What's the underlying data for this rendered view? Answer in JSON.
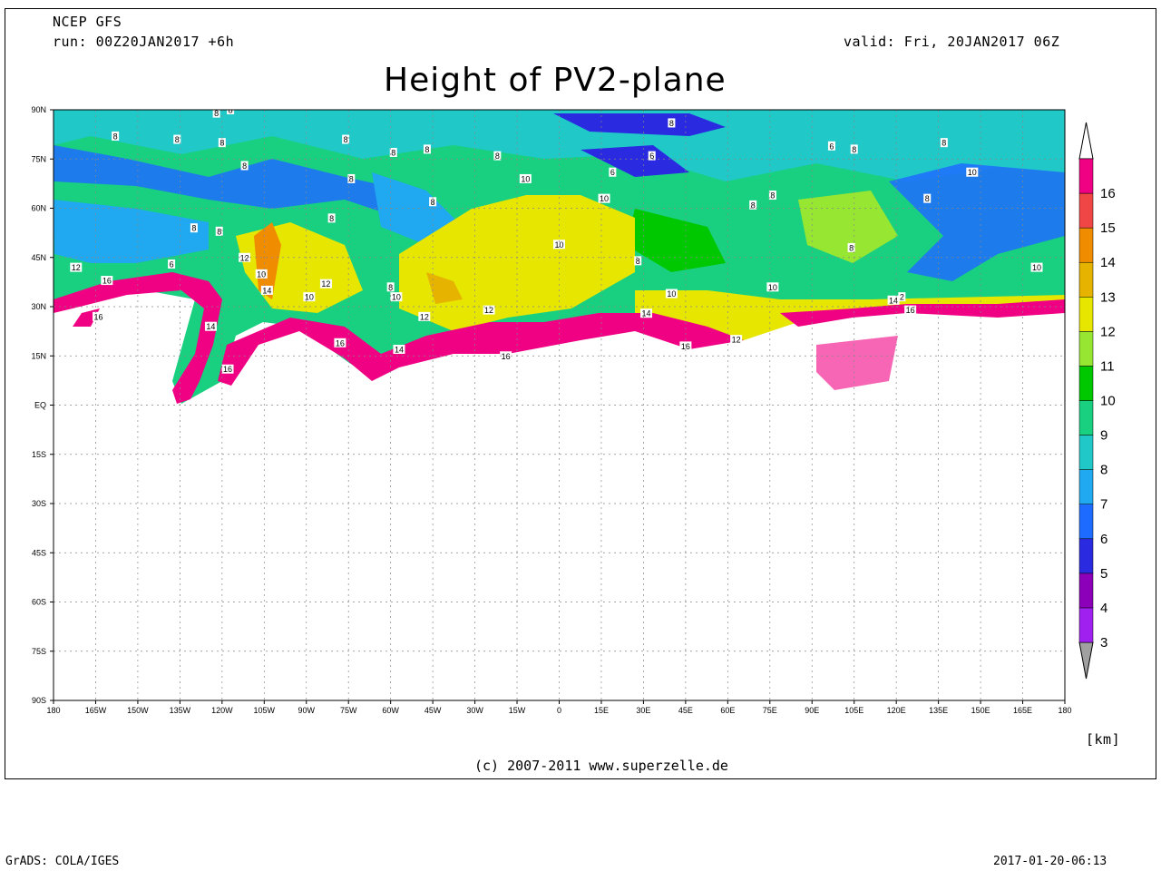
{
  "header": {
    "model": "NCEP GFS",
    "run": "run: 00Z20JAN2017 +6h",
    "valid": "valid: Fri, 20JAN2017 06Z",
    "title": "Height of PV2-plane"
  },
  "map": {
    "lat_labels": [
      "90N",
      "75N",
      "60N",
      "45N",
      "30N",
      "15N",
      "EQ",
      "15S",
      "30S",
      "45S",
      "60S",
      "75S",
      "90S"
    ],
    "lon_labels": [
      "180",
      "165W",
      "150W",
      "135W",
      "120W",
      "105W",
      "90W",
      "75W",
      "60W",
      "45W",
      "30W",
      "15W",
      "0",
      "15E",
      "30E",
      "45E",
      "60E",
      "75E",
      "90E",
      "105E",
      "120E",
      "135E",
      "150E",
      "165E",
      "180"
    ],
    "contour_labels": [
      {
        "text": "8",
        "lon": -122,
        "lat": 89
      },
      {
        "text": "8",
        "lon": -117,
        "lat": 90
      },
      {
        "text": "8",
        "lon": -158,
        "lat": 82
      },
      {
        "text": "8",
        "lon": -136,
        "lat": 81
      },
      {
        "text": "8",
        "lon": -120,
        "lat": 80
      },
      {
        "text": "8",
        "lon": -59,
        "lat": 77
      },
      {
        "text": "8",
        "lon": -76,
        "lat": 81
      },
      {
        "text": "8",
        "lon": -112,
        "lat": 73
      },
      {
        "text": "8",
        "lon": -74,
        "lat": 69
      },
      {
        "text": "8",
        "lon": -47,
        "lat": 78
      },
      {
        "text": "8",
        "lon": -22,
        "lat": 76
      },
      {
        "text": "6",
        "lon": 19,
        "lat": 71
      },
      {
        "text": "6",
        "lon": 33,
        "lat": 76
      },
      {
        "text": "8",
        "lon": 40,
        "lat": 86
      },
      {
        "text": "6",
        "lon": 97,
        "lat": 79
      },
      {
        "text": "8",
        "lon": 105,
        "lat": 78
      },
      {
        "text": "8",
        "lon": 137,
        "lat": 80
      },
      {
        "text": "10",
        "lon": 147,
        "lat": 71
      },
      {
        "text": "10",
        "lon": -12,
        "lat": 69
      },
      {
        "text": "10",
        "lon": 16,
        "lat": 63
      },
      {
        "text": "8",
        "lon": 69,
        "lat": 61
      },
      {
        "text": "8",
        "lon": 76,
        "lat": 64
      },
      {
        "text": "8",
        "lon": 131,
        "lat": 63
      },
      {
        "text": "8",
        "lon": -45,
        "lat": 62
      },
      {
        "text": "8",
        "lon": -81,
        "lat": 57
      },
      {
        "text": "8",
        "lon": -130,
        "lat": 54
      },
      {
        "text": "8",
        "lon": -121,
        "lat": 53
      },
      {
        "text": "6",
        "lon": -138,
        "lat": 43
      },
      {
        "text": "12",
        "lon": -172,
        "lat": 42
      },
      {
        "text": "16",
        "lon": -161,
        "lat": 38
      },
      {
        "text": "12",
        "lon": -112,
        "lat": 45
      },
      {
        "text": "10",
        "lon": -106,
        "lat": 40
      },
      {
        "text": "14",
        "lon": -104,
        "lat": 35
      },
      {
        "text": "10",
        "lon": -89,
        "lat": 33
      },
      {
        "text": "12",
        "lon": -83,
        "lat": 37
      },
      {
        "text": "8",
        "lon": -60,
        "lat": 36
      },
      {
        "text": "10",
        "lon": -58,
        "lat": 33
      },
      {
        "text": "12",
        "lon": -48,
        "lat": 27
      },
      {
        "text": "12",
        "lon": -25,
        "lat": 29
      },
      {
        "text": "10",
        "lon": 0,
        "lat": 49
      },
      {
        "text": "8",
        "lon": 28,
        "lat": 44
      },
      {
        "text": "10",
        "lon": 40,
        "lat": 34
      },
      {
        "text": "14",
        "lon": 31,
        "lat": 28
      },
      {
        "text": "16",
        "lon": 45,
        "lat": 18
      },
      {
        "text": "12",
        "lon": 63,
        "lat": 20
      },
      {
        "text": "10",
        "lon": 76,
        "lat": 36
      },
      {
        "text": "8",
        "lon": 104,
        "lat": 48
      },
      {
        "text": "14",
        "lon": 119,
        "lat": 32
      },
      {
        "text": "2",
        "lon": 122,
        "lat": 33
      },
      {
        "text": "16",
        "lon": 125,
        "lat": 29
      },
      {
        "text": "10",
        "lon": 170,
        "lat": 42
      },
      {
        "text": "16",
        "lon": -164,
        "lat": 27
      },
      {
        "text": "14",
        "lon": -124,
        "lat": 24
      },
      {
        "text": "16",
        "lon": -118,
        "lat": 11
      },
      {
        "text": "16",
        "lon": -78,
        "lat": 19
      },
      {
        "text": "14",
        "lon": -57,
        "lat": 17
      },
      {
        "text": "16",
        "lon": -19,
        "lat": 15
      }
    ]
  },
  "colorbar": {
    "levels": [
      "3",
      "4",
      "5",
      "6",
      "7",
      "8",
      "9",
      "10",
      "11",
      "12",
      "13",
      "14",
      "15",
      "16"
    ],
    "colors": [
      "#a020f0",
      "#8b00b8",
      "#2a2ae0",
      "#1e6cff",
      "#20a8f0",
      "#20c8c8",
      "#18d080",
      "#00c800",
      "#96e632",
      "#e6e600",
      "#e6b400",
      "#f08c00",
      "#f04646",
      "#f00082"
    ],
    "unit": "[km]"
  },
  "footer": {
    "copyright": "(c) 2007-2011 www.superzelle.de",
    "software": "GrADS: COLA/IGES",
    "timestamp": "2017-01-20-06:13"
  }
}
